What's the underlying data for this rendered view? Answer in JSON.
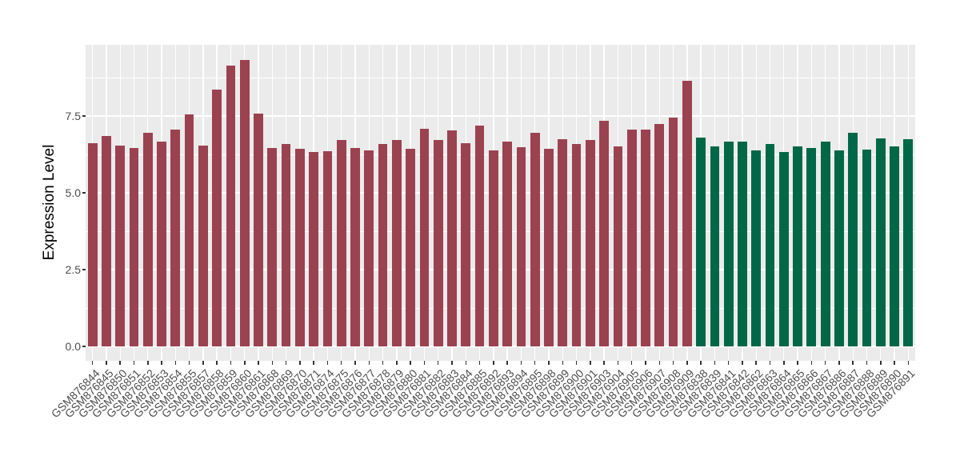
{
  "chart_data": {
    "type": "bar",
    "title": "",
    "xlabel": "",
    "ylabel": "Expression Level",
    "ylim": [
      0,
      9.84
    ],
    "yticks": [
      0.0,
      2.5,
      5.0,
      7.5
    ],
    "ytick_labels": [
      "0.0",
      "2.5",
      "5.0",
      "7.5"
    ],
    "yticks_minor": [
      1.25,
      3.75,
      6.25,
      8.75
    ],
    "grid": "on",
    "legend_position": "none",
    "colors": {
      "panel_background": "#EBEBEB",
      "grid": "#FFFFFF",
      "group_red": "#9B4251",
      "group_green": "#006846"
    },
    "bar_color_spans": [
      {
        "group": "red",
        "color": "#9B4251",
        "count": 44
      },
      {
        "group": "green",
        "color": "#006846",
        "count": 16
      }
    ],
    "categories": [
      "GSM876844",
      "GSM876845",
      "GSM876850",
      "GSM876851",
      "GSM876852",
      "GSM876853",
      "GSM876854",
      "GSM876855",
      "GSM876857",
      "GSM876858",
      "GSM876859",
      "GSM876860",
      "GSM876861",
      "GSM876868",
      "GSM876869",
      "GSM876870",
      "GSM876871",
      "GSM876874",
      "GSM876875",
      "GSM876876",
      "GSM876877",
      "GSM876878",
      "GSM876879",
      "GSM876880",
      "GSM876881",
      "GSM876882",
      "GSM876883",
      "GSM876884",
      "GSM876885",
      "GSM876892",
      "GSM876893",
      "GSM876894",
      "GSM876895",
      "GSM876898",
      "GSM876899",
      "GSM876900",
      "GSM876901",
      "GSM876903",
      "GSM876904",
      "GSM876905",
      "GSM876906",
      "GSM876907",
      "GSM876908",
      "GSM876909",
      "GSM876838",
      "GSM876839",
      "GSM876841",
      "GSM876842",
      "GSM876862",
      "GSM876863",
      "GSM876864",
      "GSM876865",
      "GSM876866",
      "GSM876867",
      "GSM876886",
      "GSM876887",
      "GSM876888",
      "GSM876889",
      "GSM876890",
      "GSM876891"
    ],
    "values": [
      6.61,
      6.85,
      6.54,
      6.46,
      6.95,
      6.67,
      7.06,
      7.55,
      6.54,
      8.36,
      9.14,
      9.32,
      7.58,
      6.46,
      6.59,
      6.43,
      6.33,
      6.35,
      6.72,
      6.46,
      6.38,
      6.59,
      6.72,
      6.43,
      7.08,
      6.72,
      7.03,
      6.61,
      7.19,
      6.38,
      6.66,
      6.48,
      6.95,
      6.43,
      6.75,
      6.59,
      6.72,
      7.35,
      6.52,
      7.06,
      7.06,
      7.25,
      7.46,
      8.64,
      6.79,
      6.52,
      6.67,
      6.67,
      6.39,
      6.59,
      6.32,
      6.52,
      6.46,
      6.67,
      6.39,
      6.95,
      6.41,
      6.78,
      6.52,
      6.74
    ]
  }
}
